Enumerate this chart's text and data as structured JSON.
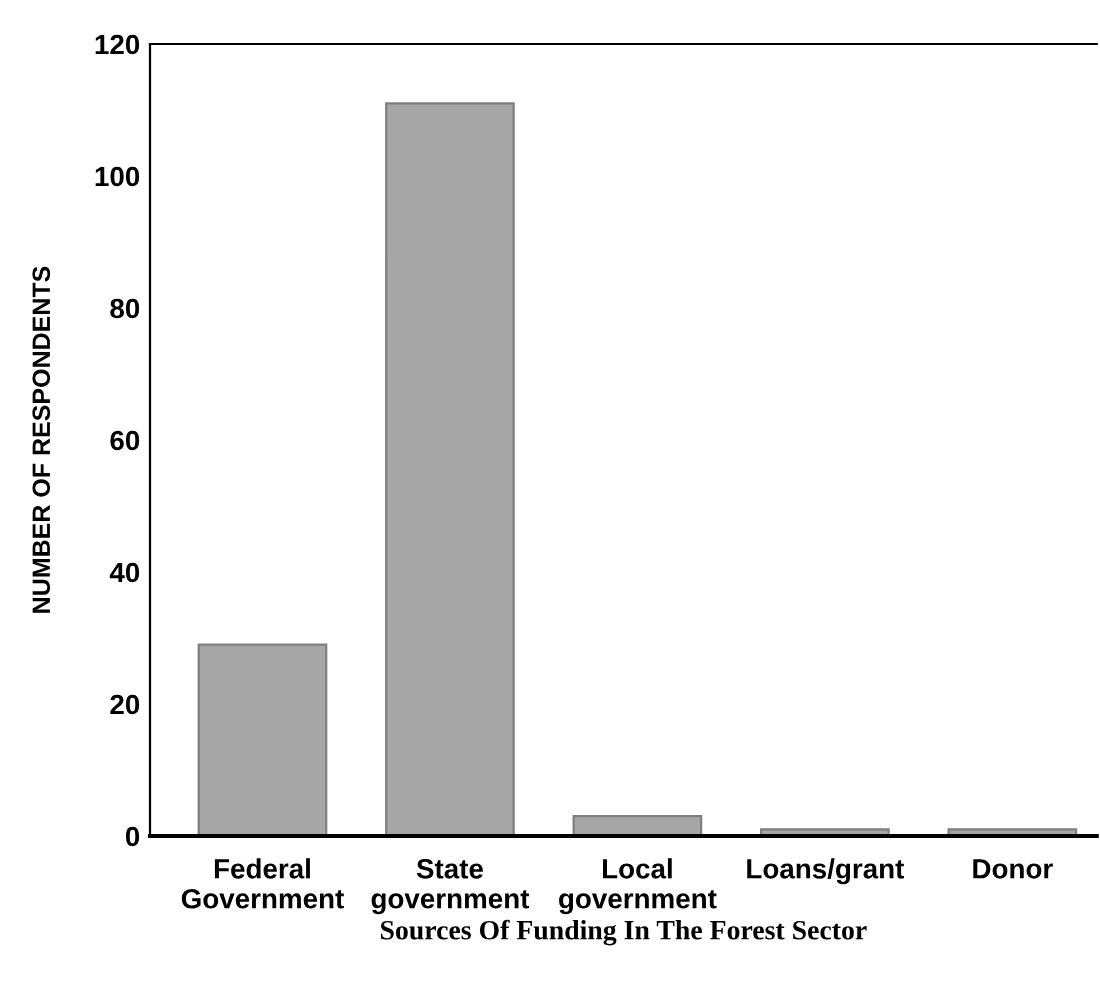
{
  "chart_data": {
    "type": "bar",
    "xlabel": "Sources Of Funding In The Forest Sector",
    "ylabel": "NUMBER OF RESPONDENTS",
    "categories": [
      "Federal\nGovernment",
      "State\ngovernment",
      "Local\ngovernment",
      "Loans/grant",
      "Donor"
    ],
    "values": [
      29,
      111,
      3,
      1,
      1
    ],
    "color": "#a6a6a6",
    "ylim": [
      0,
      120
    ],
    "yticks": [
      0,
      20,
      40,
      60,
      80,
      100,
      120
    ],
    "grid": false,
    "legend": false
  }
}
